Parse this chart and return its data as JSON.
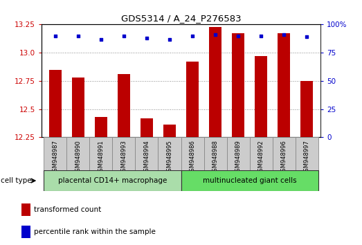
{
  "title": "GDS5314 / A_24_P276583",
  "samples": [
    "GSM948987",
    "GSM948990",
    "GSM948991",
    "GSM948993",
    "GSM948994",
    "GSM948995",
    "GSM948986",
    "GSM948988",
    "GSM948989",
    "GSM948992",
    "GSM948996",
    "GSM948997"
  ],
  "transformed_count": [
    12.85,
    12.78,
    12.43,
    12.81,
    12.42,
    12.36,
    12.92,
    13.23,
    13.17,
    12.97,
    13.17,
    12.75
  ],
  "percentile_rank": [
    90,
    90,
    87,
    90,
    88,
    87,
    90,
    91,
    90,
    90,
    91,
    89
  ],
  "group1_label": "placental CD14+ macrophage",
  "group2_label": "multinucleated giant cells",
  "group1_color": "#aaddaa",
  "group2_color": "#66dd66",
  "group1_indices": [
    0,
    1,
    2,
    3,
    4,
    5
  ],
  "group2_indices": [
    6,
    7,
    8,
    9,
    10,
    11
  ],
  "ylim_left": [
    12.25,
    13.25
  ],
  "yticks_left": [
    12.25,
    12.5,
    12.75,
    13.0,
    13.25
  ],
  "ylim_right": [
    0,
    100
  ],
  "yticks_right": [
    0,
    25,
    50,
    75,
    100
  ],
  "bar_color": "#bb0000",
  "dot_color": "#0000cc",
  "bar_width": 0.55,
  "cell_type_label": "cell type",
  "legend_items": [
    {
      "color": "#bb0000",
      "label": "transformed count"
    },
    {
      "color": "#0000cc",
      "label": "percentile rank within the sample"
    }
  ],
  "grid_color": "#888888",
  "background_color": "#ffffff",
  "tick_label_color_left": "#cc0000",
  "tick_label_color_right": "#0000cc",
  "xtick_bg_color": "#cccccc",
  "xtick_edge_color": "#888888"
}
